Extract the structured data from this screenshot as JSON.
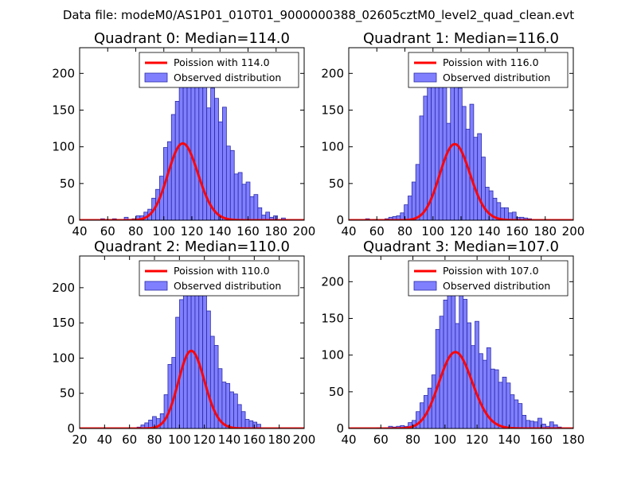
{
  "figure_title": "Data file: modeM0/AS1P01_010T01_9000000388_02605cztM0_level2_quad_clean.evt",
  "colors": {
    "bar_fill": "#8080ff",
    "bar_edge": "#2a2aa8",
    "poisson_line": "#ff0000",
    "axes": "#000000",
    "background": "#ffffff"
  },
  "chart_data": [
    {
      "type": "bar",
      "title": "Quadrant 0: Median=114.0",
      "median": 114.0,
      "xlim": [
        40,
        200
      ],
      "ylim": [
        0,
        235
      ],
      "xticks": [
        40,
        60,
        80,
        100,
        120,
        140,
        160,
        180,
        200
      ],
      "yticks": [
        0,
        50,
        100,
        150,
        200
      ],
      "legend_position": "top-right",
      "legend": [
        "Poission with 114.0",
        "Observed distribution"
      ],
      "bin_start": 55,
      "bin_width": 2.8,
      "values": [
        2,
        0,
        0,
        2,
        0,
        0,
        4,
        0,
        2,
        6,
        6,
        11,
        15,
        30,
        42,
        60,
        99,
        107,
        144,
        162,
        185,
        218,
        225,
        224,
        213,
        225,
        192,
        153,
        180,
        166,
        134,
        154,
        101,
        95,
        63,
        65,
        49,
        52,
        32,
        35,
        17,
        7,
        11,
        4,
        6,
        0,
        3,
        0,
        0,
        0
      ],
      "poisson": {
        "mu": 114.0,
        "scale": 2800
      }
    },
    {
      "type": "bar",
      "title": "Quadrant 1: Median=116.0",
      "median": 116.0,
      "xlim": [
        40,
        200
      ],
      "ylim": [
        0,
        235
      ],
      "xticks": [
        40,
        60,
        80,
        100,
        120,
        140,
        160,
        180,
        200
      ],
      "yticks": [
        0,
        50,
        100,
        150,
        200
      ],
      "legend_position": "top-right",
      "legend": [
        "Poission with 116.0",
        "Observed distribution"
      ],
      "bin_start": 52,
      "bin_width": 2.75,
      "values": [
        2,
        0,
        1,
        0,
        0,
        2,
        4,
        5,
        6,
        10,
        21,
        33,
        52,
        76,
        142,
        169,
        194,
        208,
        222,
        224,
        226,
        132,
        201,
        212,
        180,
        155,
        124,
        158,
        113,
        118,
        86,
        45,
        40,
        30,
        24,
        17,
        17,
        10,
        11,
        4,
        4,
        3,
        2,
        0,
        0,
        0,
        0,
        0,
        0,
        0
      ],
      "poisson": {
        "mu": 116.0,
        "scale": 2800
      }
    },
    {
      "type": "bar",
      "title": "Quadrant 2: Median=110.0",
      "median": 110.0,
      "xlim": [
        20,
        200
      ],
      "ylim": [
        0,
        245
      ],
      "xticks": [
        20,
        40,
        60,
        80,
        100,
        120,
        140,
        160,
        180,
        200
      ],
      "yticks": [
        0,
        50,
        100,
        150,
        200
      ],
      "legend_position": "top-right",
      "legend": [
        "Poission with 110.0",
        "Observed distribution"
      ],
      "bin_start": 66,
      "bin_width": 3.1,
      "values": [
        2,
        5,
        8,
        12,
        17,
        14,
        21,
        48,
        91,
        101,
        158,
        183,
        205,
        228,
        235,
        222,
        220,
        191,
        167,
        131,
        118,
        85,
        66,
        64,
        52,
        49,
        34,
        24,
        13,
        11,
        9,
        6,
        0,
        0
      ],
      "poisson": {
        "mu": 110.0,
        "scale": 2900
      }
    },
    {
      "type": "bar",
      "title": "Quadrant 3: Median=107.0",
      "median": 107.0,
      "xlim": [
        40,
        180
      ],
      "ylim": [
        0,
        235
      ],
      "xticks": [
        40,
        60,
        80,
        100,
        120,
        140,
        160,
        180
      ],
      "yticks": [
        0,
        50,
        100,
        150,
        200
      ],
      "legend_position": "top-right",
      "legend": [
        "Poission with 107.0",
        "Observed distribution"
      ],
      "bin_start": 55,
      "bin_width": 2.45,
      "values": [
        0,
        1,
        0,
        1,
        3,
        2,
        3,
        4,
        3,
        8,
        11,
        23,
        35,
        45,
        55,
        73,
        135,
        153,
        175,
        182,
        185,
        143,
        224,
        176,
        144,
        113,
        146,
        102,
        93,
        110,
        81,
        80,
        63,
        70,
        62,
        46,
        39,
        34,
        18,
        11,
        10,
        9,
        14,
        6,
        3,
        9,
        5,
        2,
        0,
        0
      ],
      "poisson": {
        "mu": 107.0,
        "scale": 2700
      }
    }
  ]
}
